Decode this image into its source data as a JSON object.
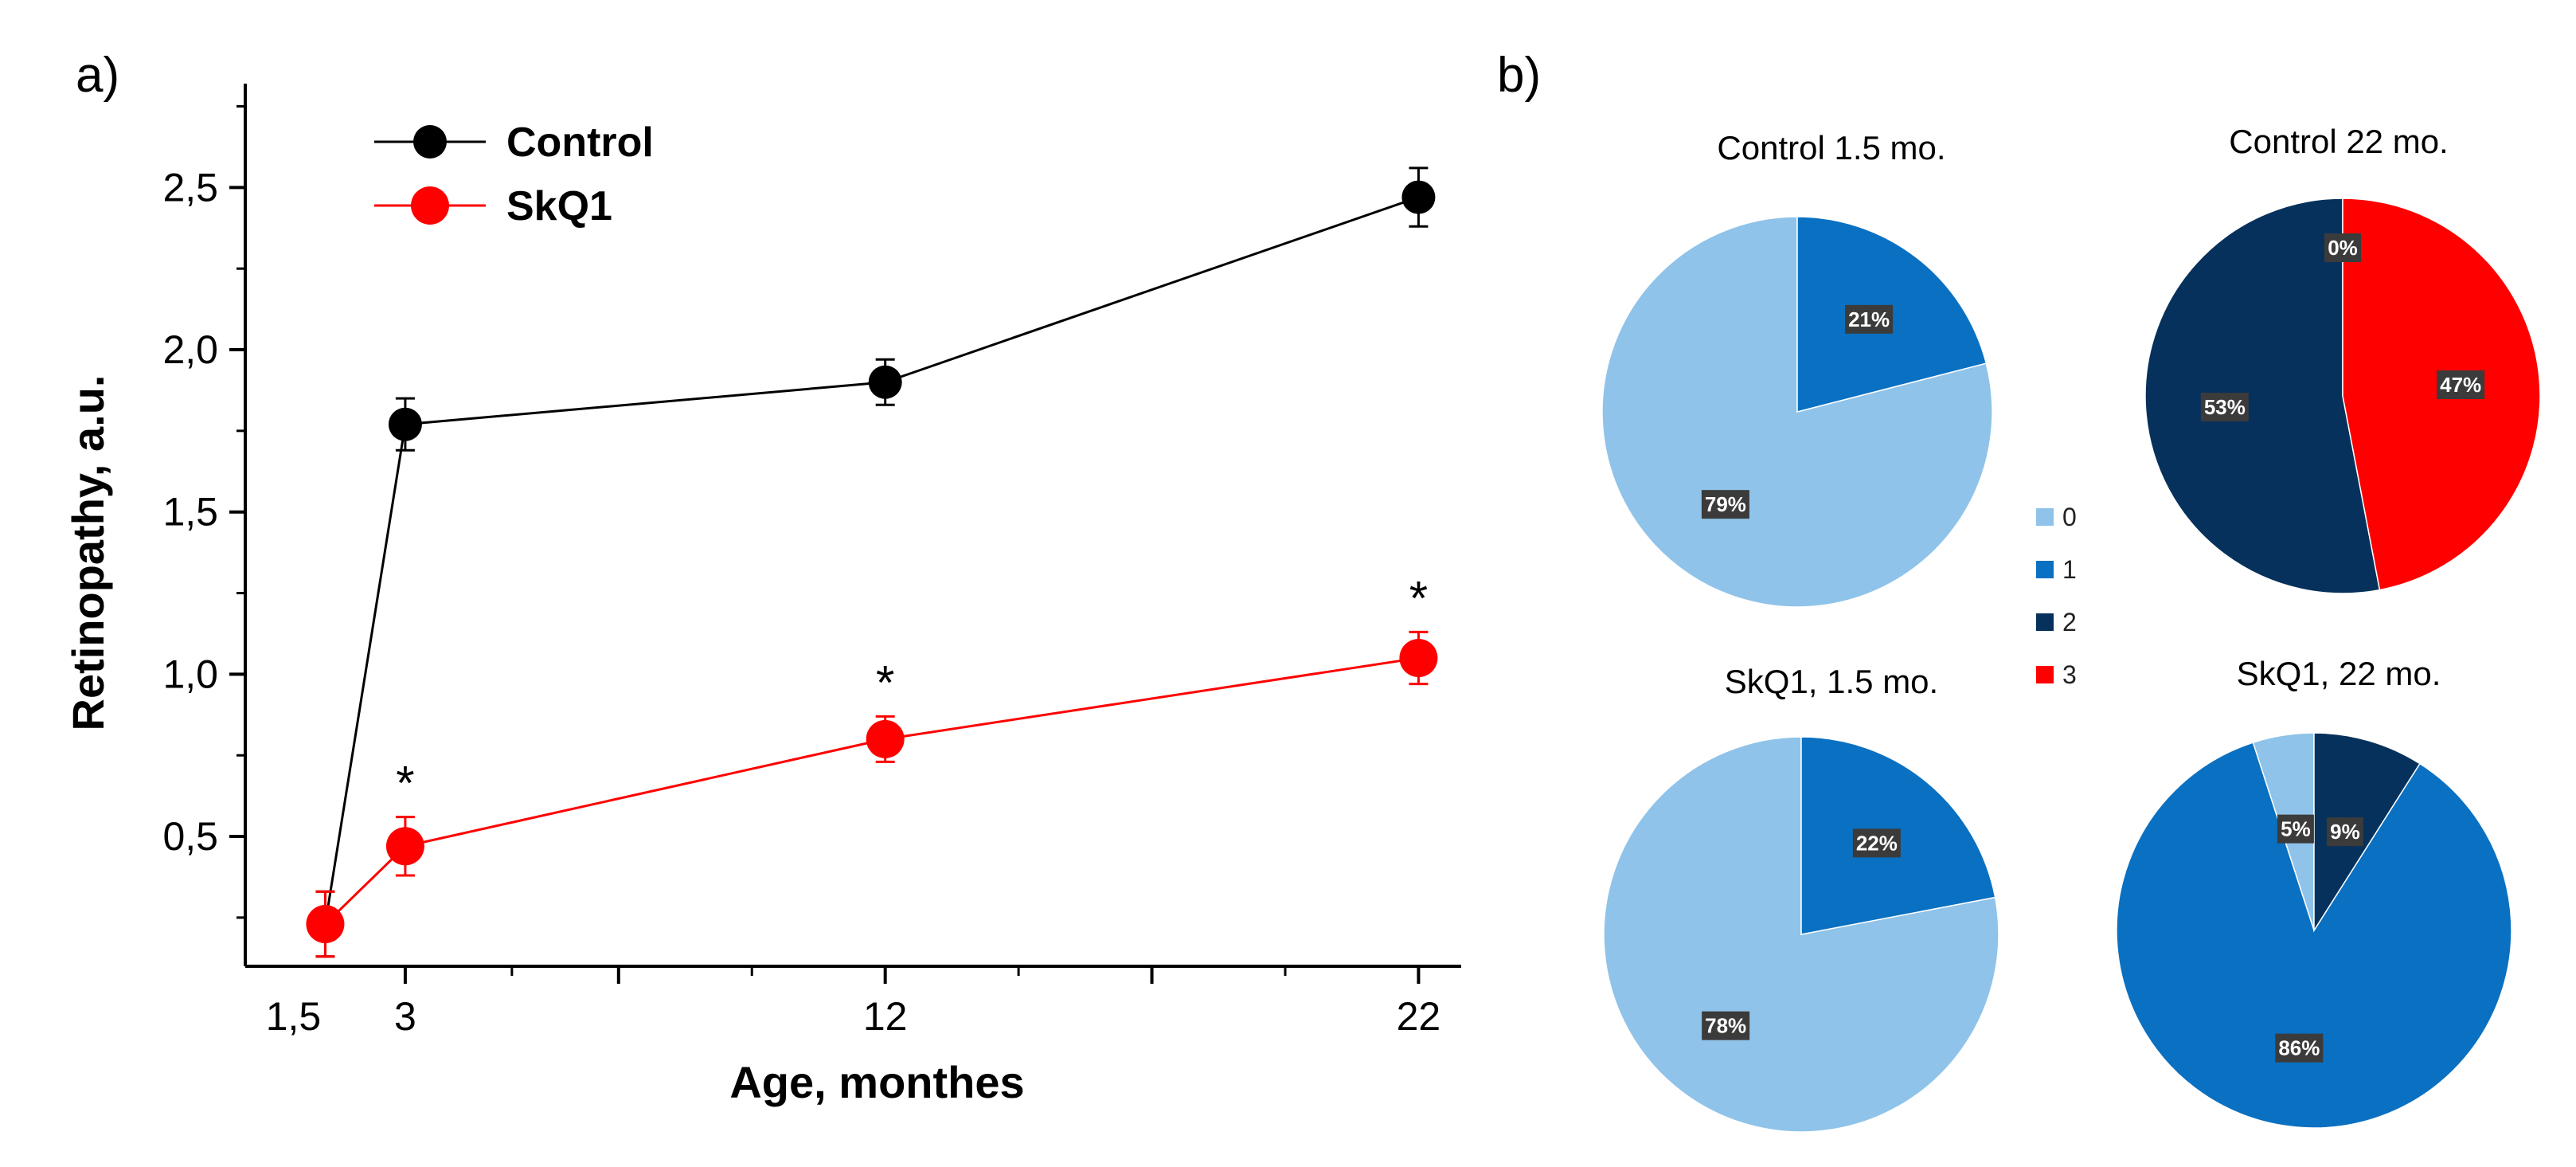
{
  "figure": {
    "panel_a_letter": "a)",
    "panel_b_letter": "b)"
  },
  "chart_data": [
    {
      "type": "line",
      "xlabel": "Age, monthes",
      "ylabel": "Retinopathy, a.u.",
      "xlim": [
        0,
        22.8
      ],
      "ylim": [
        0.1,
        2.82
      ],
      "x_ticks": [
        {
          "value": 1.5,
          "label": "1,5"
        },
        {
          "value": 3,
          "label": "3"
        },
        {
          "value": 12,
          "label": "12"
        },
        {
          "value": 22,
          "label": "22"
        }
      ],
      "x_major_tick_marks": [
        3,
        7,
        12,
        17,
        22
      ],
      "x_minor_tick_marks": [
        5,
        9.5,
        14.5,
        19.5
      ],
      "y_ticks": [
        {
          "value": 0.5,
          "label": "0,5"
        },
        {
          "value": 1.0,
          "label": "1,0"
        },
        {
          "value": 1.5,
          "label": "1,5"
        },
        {
          "value": 2.0,
          "label": "2,0"
        },
        {
          "value": 2.5,
          "label": "2,5"
        }
      ],
      "y_minor_tick_marks": [
        0.25,
        0.75,
        1.25,
        1.75,
        2.25,
        2.75
      ],
      "legend_position": "top-left",
      "series": [
        {
          "name": "Control",
          "color": "#000000",
          "x": [
            1.5,
            3,
            12,
            22
          ],
          "y": [
            0.23,
            1.77,
            1.9,
            2.47
          ],
          "error": [
            0.1,
            0.08,
            0.07,
            0.09
          ],
          "significance": [
            "",
            "",
            "",
            ""
          ]
        },
        {
          "name": "SkQ1",
          "color": "#ff0000",
          "x": [
            1.5,
            3,
            12,
            22
          ],
          "y": [
            0.23,
            0.47,
            0.8,
            1.05
          ],
          "error": [
            0.1,
            0.09,
            0.07,
            0.08
          ],
          "significance": [
            "",
            "*",
            "*",
            "*"
          ]
        }
      ]
    },
    {
      "type": "pie",
      "title": "Control 1.5 mo.",
      "slices": [
        {
          "category": "0",
          "value": 79,
          "label": "79%"
        },
        {
          "category": "1",
          "value": 21,
          "label": "21%"
        }
      ]
    },
    {
      "type": "pie",
      "title": "Control 22 mo.",
      "slices": [
        {
          "category": "0",
          "value": 0,
          "label": "0%"
        },
        {
          "category": "2",
          "value": 53,
          "label": "53%"
        },
        {
          "category": "3",
          "value": 47,
          "label": "47%"
        }
      ]
    },
    {
      "type": "pie",
      "title": "SkQ1, 1.5 mo.",
      "slices": [
        {
          "category": "0",
          "value": 78,
          "label": "78%"
        },
        {
          "category": "1",
          "value": 22,
          "label": "22%"
        }
      ]
    },
    {
      "type": "pie",
      "title": "SkQ1, 22 mo.",
      "slices": [
        {
          "category": "0",
          "value": 5,
          "label": "5%"
        },
        {
          "category": "1",
          "value": 86,
          "label": "86%"
        },
        {
          "category": "2",
          "value": 9,
          "label": "9%"
        }
      ]
    }
  ],
  "pie_legend": {
    "position": "center",
    "items": [
      {
        "label": "0",
        "color": "#8fc3e9"
      },
      {
        "label": "1",
        "color": "#0a70c1"
      },
      {
        "label": "2",
        "color": "#06315c"
      },
      {
        "label": "3",
        "color": "#ff0000"
      }
    ]
  }
}
